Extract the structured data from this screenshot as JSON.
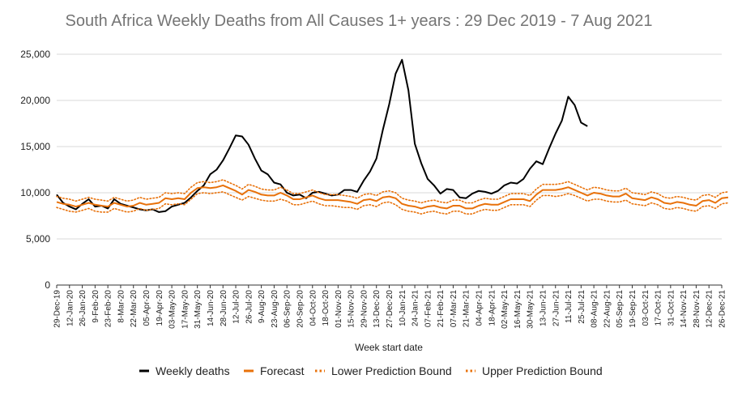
{
  "chart_data": {
    "type": "line",
    "title": "South Africa Weekly Deaths from All Causes 1+ years : 29 Dec 2019 - 7 Aug 2021",
    "xlabel": "Week start date",
    "ylabel": "",
    "ylim": [
      0,
      25000
    ],
    "yticks": [
      "0",
      "5,000",
      "10,000",
      "15,000",
      "20,000",
      "25,000"
    ],
    "ytick_values": [
      0,
      5000,
      10000,
      15000,
      20000,
      25000
    ],
    "grid": "horizontal",
    "legend_position": "bottom",
    "x_tick_labels": [
      "29-Dec-19",
      "12-Jan-20",
      "26-Jan-20",
      "9-Feb-20",
      "23-Feb-20",
      "8-Mar-20",
      "22-Mar-20",
      "05-Apr-20",
      "19-Apr-20",
      "03-May-20",
      "17-May-20",
      "31-May-20",
      "14-Jun-20",
      "28-Jun-20",
      "12-Jul-20",
      "26-Jul-20",
      "9-Aug-20",
      "23-Aug-20",
      "06-Sep-20",
      "20-Sep-20",
      "04-Oct-20",
      "18-Oct-20",
      "01-Nov-20",
      "15-Nov-20",
      "29-Nov-20",
      "13-Dec-20",
      "27-Dec-20",
      "10-Jan-21",
      "24-Jan-21",
      "07-Feb-21",
      "21-Feb-21",
      "07-Mar-21",
      "21-Mar-21",
      "04-Apr-21",
      "18-Apr-21",
      "02-May-21",
      "16-May-21",
      "30-May-21",
      "13-Jun-21",
      "27-Jun-21",
      "11-Jul-21",
      "25-Jul-21",
      "08-Aug-21",
      "22-Aug-21",
      "05-Sep-21",
      "19-Sep-21",
      "03-Oct-21",
      "17-Oct-21",
      "31-Oct-21",
      "14-Nov-21",
      "28-Nov-21",
      "12-Dec-21",
      "26-Dec-21"
    ],
    "series": [
      {
        "name": "Weekly deaths",
        "color": "#000000",
        "style": "solid",
        "values": [
          9800,
          8900,
          8500,
          8200,
          8800,
          9300,
          8500,
          8600,
          8300,
          9300,
          8800,
          8600,
          8400,
          8200,
          8100,
          8200,
          7900,
          8000,
          8500,
          8700,
          8900,
          9500,
          10200,
          10800,
          12000,
          12500,
          13500,
          14800,
          16200,
          16100,
          15200,
          13700,
          12400,
          12000,
          11100,
          10900,
          10000,
          9700,
          9800,
          9400,
          10000,
          10100,
          9900,
          9700,
          9800,
          10300,
          10300,
          10100,
          11300,
          12300,
          13700,
          16800,
          19600,
          22900,
          24400,
          21100,
          15300,
          13200,
          11500,
          10800,
          9900,
          10400,
          10300,
          9500,
          9400,
          9900,
          10200,
          10100,
          9900,
          10200,
          10800,
          11100,
          11000,
          11500,
          12600,
          13400,
          13100,
          14800,
          16400,
          17800,
          20400,
          19500,
          17600,
          17200
        ],
        "values_note": ""
      },
      {
        "name": "Forecast",
        "color": "#e8710a",
        "style": "solid",
        "values": [
          9000,
          8800,
          8700,
          8500,
          8700,
          8900,
          8700,
          8600,
          8500,
          8900,
          8700,
          8500,
          8600,
          8900,
          8700,
          8800,
          8900,
          9400,
          9300,
          9400,
          9300,
          10000,
          10500,
          10600,
          10500,
          10600,
          10800,
          10500,
          10200,
          9800,
          10300,
          10100,
          9800,
          9700,
          9700,
          10000,
          9700,
          9300,
          9300,
          9500,
          9700,
          9400,
          9200,
          9200,
          9200,
          9100,
          9000,
          8800,
          9200,
          9300,
          9100,
          9500,
          9600,
          9400,
          8800,
          8600,
          8500,
          8300,
          8500,
          8600,
          8400,
          8300,
          8600,
          8600,
          8300,
          8300,
          8600,
          8800,
          8700,
          8700,
          9000,
          9300,
          9300,
          9300,
          9100,
          9800,
          10300,
          10300,
          10300,
          10400,
          10600,
          10300,
          10000,
          9700,
          10000,
          9900,
          9700,
          9600,
          9600,
          9900,
          9400,
          9300,
          9200,
          9500,
          9300,
          8900,
          8800,
          9000,
          8900,
          8700,
          8600,
          9100,
          9200,
          8900,
          9400,
          9500
        ],
        "values_note": ""
      },
      {
        "name": "Lower Prediction Bound",
        "color": "#e8710a",
        "style": "dotted",
        "values": [
          8400,
          8200,
          8000,
          7900,
          8100,
          8300,
          8000,
          7900,
          7900,
          8300,
          8100,
          7900,
          8000,
          8300,
          8100,
          8200,
          8300,
          8800,
          8700,
          8800,
          8700,
          9300,
          9900,
          10000,
          9900,
          10000,
          10100,
          9800,
          9500,
          9200,
          9600,
          9400,
          9200,
          9100,
          9100,
          9300,
          9100,
          8700,
          8700,
          8900,
          9100,
          8800,
          8600,
          8600,
          8500,
          8400,
          8400,
          8200,
          8600,
          8700,
          8500,
          8900,
          9000,
          8700,
          8200,
          8000,
          7900,
          7700,
          7900,
          8000,
          7800,
          7700,
          8000,
          8000,
          7700,
          7700,
          8000,
          8200,
          8100,
          8100,
          8400,
          8700,
          8700,
          8700,
          8500,
          9200,
          9700,
          9700,
          9600,
          9700,
          9900,
          9700,
          9400,
          9100,
          9300,
          9300,
          9100,
          9000,
          9000,
          9200,
          8800,
          8700,
          8600,
          8900,
          8700,
          8300,
          8200,
          8400,
          8300,
          8100,
          8000,
          8500,
          8600,
          8300,
          8800,
          8900
        ],
        "values_note": ""
      },
      {
        "name": "Upper Prediction Bound",
        "color": "#e8710a",
        "style": "dotted",
        "values": [
          9600,
          9400,
          9300,
          9100,
          9300,
          9500,
          9300,
          9200,
          9100,
          9500,
          9300,
          9100,
          9200,
          9500,
          9300,
          9400,
          9500,
          10000,
          9900,
          10000,
          9900,
          10600,
          11100,
          11200,
          11100,
          11200,
          11400,
          11100,
          10800,
          10400,
          10900,
          10700,
          10400,
          10300,
          10300,
          10600,
          10300,
          9900,
          9900,
          10100,
          10300,
          10000,
          9800,
          9800,
          9800,
          9700,
          9600,
          9400,
          9800,
          9900,
          9700,
          10100,
          10200,
          10000,
          9400,
          9200,
          9100,
          8900,
          9100,
          9200,
          9000,
          8900,
          9200,
          9200,
          8900,
          8900,
          9200,
          9400,
          9300,
          9300,
          9600,
          9900,
          9900,
          9900,
          9700,
          10400,
          10900,
          10900,
          10900,
          11000,
          11200,
          10900,
          10600,
          10300,
          10600,
          10500,
          10300,
          10200,
          10200,
          10500,
          10000,
          9900,
          9800,
          10100,
          9900,
          9500,
          9400,
          9600,
          9500,
          9300,
          9200,
          9700,
          9800,
          9500,
          10000,
          10100
        ],
        "values_note": ""
      }
    ]
  },
  "legend": {
    "items": [
      {
        "label": "Weekly deaths"
      },
      {
        "label": "Forecast"
      },
      {
        "label": "Lower Prediction Bound"
      },
      {
        "label": "Upper Prediction Bound"
      }
    ]
  }
}
